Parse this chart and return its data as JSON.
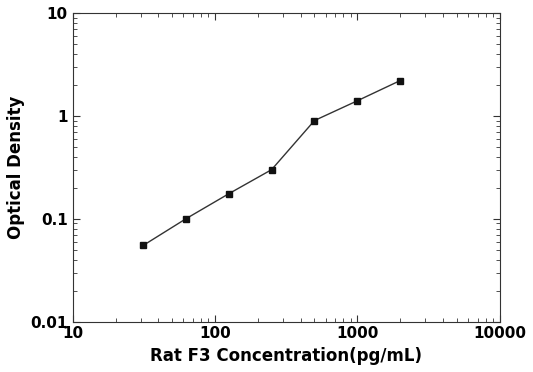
{
  "x": [
    31.25,
    62.5,
    125,
    250,
    500,
    1000,
    2000
  ],
  "y": [
    0.055,
    0.1,
    0.175,
    0.3,
    0.9,
    1.4,
    2.2
  ],
  "xlabel": "Rat F3 Concentration(pg/mL)",
  "ylabel": "Optical Density",
  "xlim": [
    10,
    10000
  ],
  "ylim": [
    0.01,
    10
  ],
  "xticks": [
    10,
    100,
    1000,
    10000
  ],
  "yticks": [
    0.01,
    0.1,
    1,
    10
  ],
  "line_color": "#333333",
  "marker_color": "#111111",
  "marker": "s",
  "marker_size": 5,
  "line_width": 1.0,
  "xlabel_fontsize": 12,
  "ylabel_fontsize": 12,
  "tick_labelsize": 11,
  "background_color": "#ffffff"
}
